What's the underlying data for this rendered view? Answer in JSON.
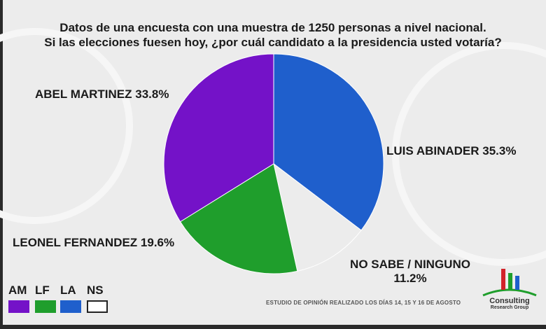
{
  "title": {
    "line1": "Datos de una encuesta con una muestra de 1250 personas a nivel nacional.",
    "line2": "Si las elecciones fuesen hoy, ¿por cuál candidato a la presidencia usted votaría?"
  },
  "chart_data": {
    "type": "pie",
    "title": "Si las elecciones fuesen hoy, ¿por cuál candidato a la presidencia usted votaría?",
    "slices": [
      {
        "name": "LUIS ABINADER",
        "value": 35.3,
        "label": "LUIS ABINADER 35.3%",
        "color": "#1f5fcc"
      },
      {
        "name": "NO SABE / NINGUNO",
        "value": 11.2,
        "label_line1": "NO SABE / NINGUNO",
        "label_line2": "11.2%",
        "color": "#ececec"
      },
      {
        "name": "LEONEL FERNANDEZ",
        "value": 19.6,
        "label": "LEONEL FERNANDEZ 19.6%",
        "color": "#1f9e2c"
      },
      {
        "name": "ABEL MARTINEZ",
        "value": 33.8,
        "label": "ABEL MARTINEZ 33.8%",
        "color": "#7412c8"
      }
    ],
    "start_angle": "12 o'clock",
    "direction": "clockwise",
    "legend": [
      {
        "code": "AM",
        "color": "#7412c8"
      },
      {
        "code": "LF",
        "color": "#1f9e2c"
      },
      {
        "code": "LA",
        "color": "#1f5fcc"
      },
      {
        "code": "NS",
        "color": "#ffffff"
      }
    ]
  },
  "footnote": "ESTUDIO DE OPINIÓN REALIZADO LOS DÍAS 14, 15 Y 16 DE AGOSTO",
  "logo": {
    "name": "Consulting",
    "subtitle": "Research Group",
    "colors": [
      "#d2232a",
      "#1f9e2c",
      "#1f5fcc"
    ]
  }
}
